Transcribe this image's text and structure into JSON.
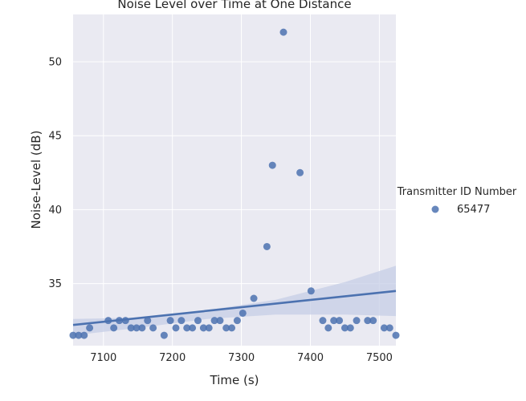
{
  "chart_data": {
    "type": "scatter",
    "title": "Noise Level over Time at One Distance",
    "xlabel": "Time (s)",
    "ylabel": "Noise-Level (dB)",
    "xlim": [
      7056,
      7524
    ],
    "ylim": [
      30.8,
      53.2
    ],
    "xticks": [
      7100,
      7200,
      7300,
      7400,
      7500
    ],
    "yticks": [
      35,
      40,
      45,
      50
    ],
    "grid": true,
    "legend": {
      "title": "Transmitter ID Number",
      "placement": "right"
    },
    "colors": {
      "point": "#4c72b0",
      "line": "#4c72b0",
      "band": "#c5cde6",
      "background": "#eaeaf2",
      "grid": "#ffffff"
    },
    "series": [
      {
        "name": "65477",
        "points": [
          [
            7056,
            31.5
          ],
          [
            7064,
            31.5
          ],
          [
            7072,
            31.5
          ],
          [
            7080,
            32.0
          ],
          [
            7107,
            32.5
          ],
          [
            7115,
            32.0
          ],
          [
            7123,
            32.5
          ],
          [
            7132,
            32.5
          ],
          [
            7140,
            32.0
          ],
          [
            7148,
            32.0
          ],
          [
            7156,
            32.0
          ],
          [
            7164,
            32.5
          ],
          [
            7172,
            32.0
          ],
          [
            7188,
            31.5
          ],
          [
            7197,
            32.5
          ],
          [
            7205,
            32.0
          ],
          [
            7213,
            32.5
          ],
          [
            7221,
            32.0
          ],
          [
            7229,
            32.0
          ],
          [
            7237,
            32.5
          ],
          [
            7245,
            32.0
          ],
          [
            7253,
            32.0
          ],
          [
            7261,
            32.5
          ],
          [
            7269,
            32.5
          ],
          [
            7278,
            32.0
          ],
          [
            7286,
            32.0
          ],
          [
            7294,
            32.5
          ],
          [
            7302,
            33.0
          ],
          [
            7318,
            34.0
          ],
          [
            7337,
            37.5
          ],
          [
            7345,
            43.0
          ],
          [
            7361,
            52.0
          ],
          [
            7385,
            42.5
          ],
          [
            7401,
            34.5
          ],
          [
            7418,
            32.5
          ],
          [
            7426,
            32.0
          ],
          [
            7434,
            32.5
          ],
          [
            7442,
            32.5
          ],
          [
            7450,
            32.0
          ],
          [
            7458,
            32.0
          ],
          [
            7467,
            32.5
          ],
          [
            7483,
            32.5
          ],
          [
            7491,
            32.5
          ],
          [
            7507,
            32.0
          ],
          [
            7515,
            32.0
          ],
          [
            7524,
            31.5
          ]
        ]
      }
    ],
    "regression": {
      "x": [
        7056,
        7524
      ],
      "y": [
        32.2,
        34.5
      ]
    },
    "confidence_band": {
      "x": [
        7056,
        7150,
        7250,
        7350,
        7450,
        7524
      ],
      "lower": [
        31.5,
        32.0,
        32.6,
        32.9,
        32.9,
        32.8
      ],
      "upper": [
        32.6,
        32.7,
        33.2,
        33.9,
        35.1,
        36.2
      ]
    }
  }
}
